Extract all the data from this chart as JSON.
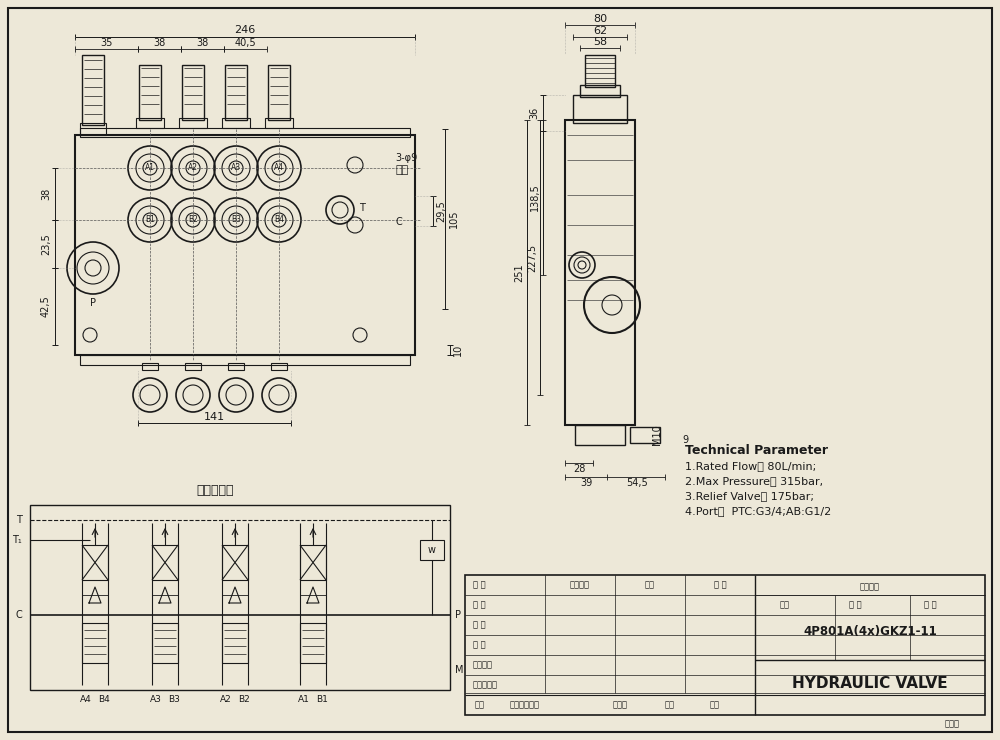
{
  "bg_color": "#ede8d8",
  "line_color": "#1a1a1a",
  "title_main": "Technical Parameter",
  "tech_params": [
    "1.Rated Flow： 80L/min;",
    "2.Max Pressure： 315bar,",
    "3.Relief Valve： 175bar;",
    "4.Port：  PTC:G3/4;AB:G1/2"
  ],
  "model_number": "4P801A(4x)GKZ1-11",
  "product_name": "HYDRAULIC VALVE",
  "hydraulic_title": "液压原理图",
  "dim_246": "246",
  "dim_35": "35",
  "dim_38a": "38",
  "dim_38b": "38",
  "dim_405": "40,5",
  "dim_38side": "38",
  "dim_235": "23,5",
  "dim_425": "42,5",
  "dim_295": "29,5",
  "dim_105": "105",
  "dim_3phi9": "3-φ9",
  "dim_tonkong": "通孔",
  "dim_141": "141",
  "dim_10": "10",
  "dim_80": "80",
  "dim_62": "62",
  "dim_58": "58",
  "dim_36": "36",
  "dim_251": "251",
  "dim_2275": "227,5",
  "dim_1385": "138,5",
  "dim_28": "28",
  "dim_39": "39",
  "dim_545": "54,5",
  "dim_9": "9",
  "dim_M10": "M10"
}
